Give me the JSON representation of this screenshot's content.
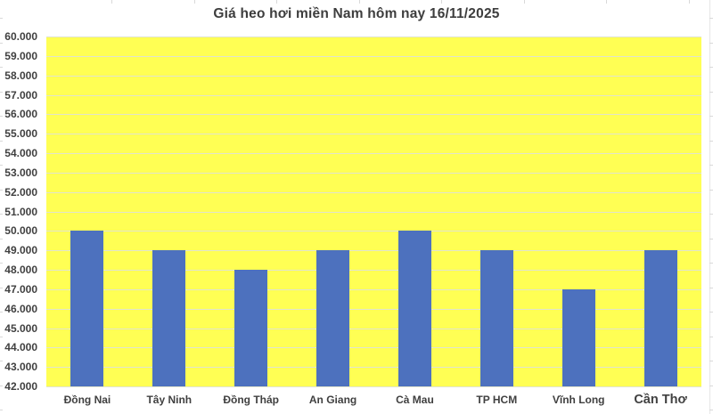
{
  "chart_data": {
    "type": "bar",
    "title": "Giá heo hơi miền Nam hôm nay 16/11/2025",
    "categories": [
      "Đồng Nai",
      "Tây Ninh",
      "Đồng Tháp",
      "An Giang",
      "Cà Mau",
      "TP HCM",
      "Vĩnh Long",
      "Cần Thơ"
    ],
    "values": [
      50000,
      49000,
      48000,
      49000,
      50000,
      49000,
      47000,
      49000
    ],
    "xlabel": "",
    "ylabel": "",
    "ylim": [
      42000,
      60000
    ],
    "ytick_step": 1000,
    "ytick_labels": [
      "42.000",
      "43.000",
      "44.000",
      "45.000",
      "46.000",
      "47.000",
      "48.000",
      "49.000",
      "50.000",
      "51.000",
      "52.000",
      "53.000",
      "54.000",
      "55.000",
      "56.000",
      "57.000",
      "58.000",
      "59.000",
      "60.000"
    ],
    "grid": true,
    "legend": false,
    "colors": {
      "bar": "#4D71BE",
      "plot_background": "#FFFF54",
      "gridline": "#E1E4CD",
      "title_text": "#3D3D3D",
      "axis_text": "#404040"
    }
  }
}
